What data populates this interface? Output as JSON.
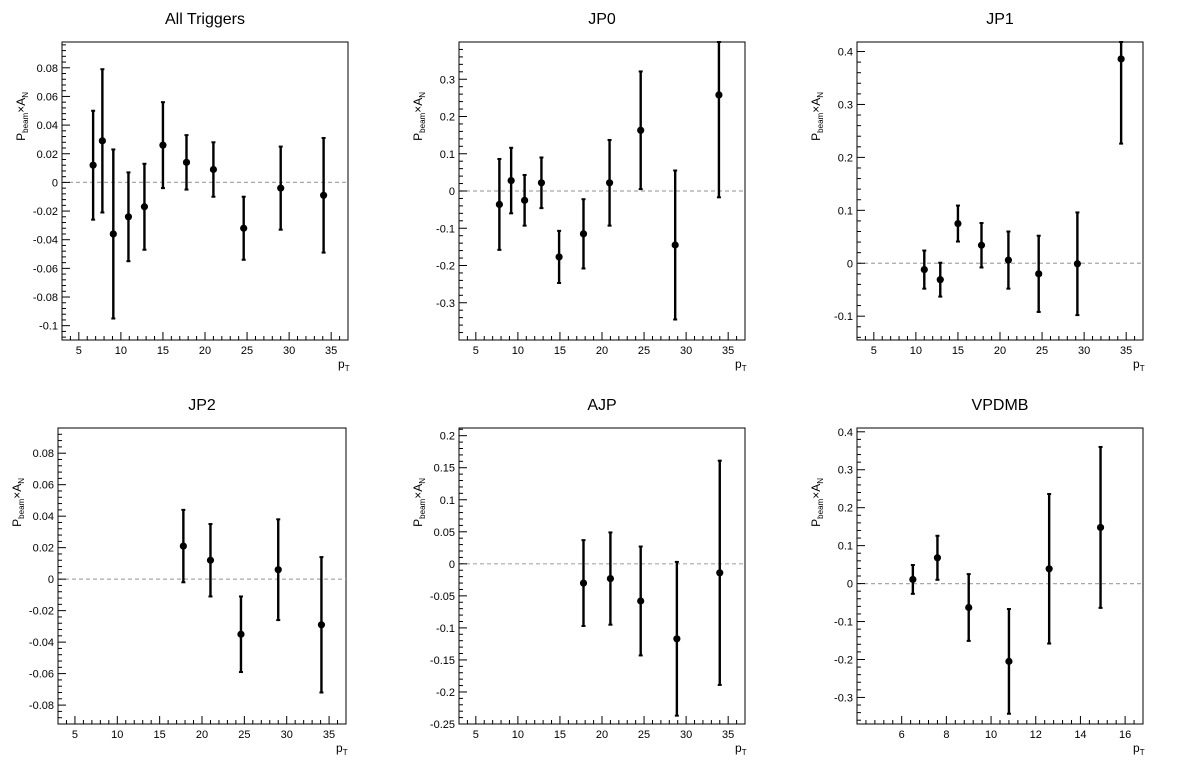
{
  "chart_data": [
    {
      "type": "scatter",
      "title": "All Triggers",
      "xlabel": "p",
      "xlabel_sub": "T",
      "ylabel_a": "P",
      "ylabel_sub": "beam",
      "ylabel_b": "×A",
      "ylabel_sub2": "N",
      "xlim": [
        3,
        37
      ],
      "ylim": [
        -0.11,
        0.098
      ],
      "xticks": [
        5,
        10,
        15,
        20,
        25,
        30,
        35
      ],
      "xtick_labels": [
        "5",
        "10",
        "15",
        "20",
        "25",
        "30",
        "35"
      ],
      "yticks": [
        -0.1,
        -0.08,
        -0.06,
        -0.04,
        -0.02,
        0,
        0.02,
        0.04,
        0.06,
        0.08
      ],
      "ytick_labels": [
        "-0.1",
        "-0.08",
        "-0.06",
        "-0.04",
        "-0.02",
        "0",
        "0.02",
        "0.04",
        "0.06",
        "0.08"
      ],
      "points": [
        {
          "x": 6.7,
          "y": 0.012,
          "err": 0.038
        },
        {
          "x": 7.8,
          "y": 0.029,
          "err": 0.05
        },
        {
          "x": 9.1,
          "y": -0.036,
          "err": 0.059
        },
        {
          "x": 10.9,
          "y": -0.024,
          "err": 0.031
        },
        {
          "x": 12.8,
          "y": -0.017,
          "err": 0.03
        },
        {
          "x": 15.0,
          "y": 0.026,
          "err": 0.03
        },
        {
          "x": 17.8,
          "y": 0.014,
          "err": 0.019
        },
        {
          "x": 21.0,
          "y": 0.009,
          "err": 0.019
        },
        {
          "x": 24.6,
          "y": -0.032,
          "err": 0.022
        },
        {
          "x": 29.0,
          "y": -0.004,
          "err": 0.029
        },
        {
          "x": 34.1,
          "y": -0.009,
          "err": 0.04
        }
      ],
      "reference_line": 0,
      "grid": false
    },
    {
      "type": "scatter",
      "title": "JP0",
      "xlabel": "p",
      "xlabel_sub": "T",
      "ylabel_a": "P",
      "ylabel_sub": "beam",
      "ylabel_b": "×A",
      "ylabel_sub2": "N",
      "xlim": [
        3,
        37
      ],
      "ylim": [
        -0.4,
        0.4
      ],
      "xticks": [
        5,
        10,
        15,
        20,
        25,
        30,
        35
      ],
      "xtick_labels": [
        "5",
        "10",
        "15",
        "20",
        "25",
        "30",
        "35"
      ],
      "yticks": [
        -0.3,
        -0.2,
        -0.1,
        0,
        0.1,
        0.2,
        0.3
      ],
      "ytick_labels": [
        "-0.3",
        "-0.2",
        "-0.1",
        "0",
        "0.1",
        "0.2",
        "0.3"
      ],
      "points": [
        {
          "x": 7.8,
          "y": -0.036,
          "err": 0.122
        },
        {
          "x": 9.2,
          "y": 0.028,
          "err": 0.088
        },
        {
          "x": 10.8,
          "y": -0.025,
          "err": 0.068
        },
        {
          "x": 12.8,
          "y": 0.022,
          "err": 0.068
        },
        {
          "x": 14.9,
          "y": -0.177,
          "err": 0.07
        },
        {
          "x": 17.8,
          "y": -0.115,
          "err": 0.093
        },
        {
          "x": 20.9,
          "y": 0.022,
          "err": 0.115
        },
        {
          "x": 24.6,
          "y": 0.163,
          "err": 0.158
        },
        {
          "x": 28.7,
          "y": -0.145,
          "err": 0.2
        },
        {
          "x": 33.9,
          "y": 0.258,
          "err": 0.275
        }
      ],
      "reference_line": 0,
      "grid": false
    },
    {
      "type": "scatter",
      "title": "JP1",
      "xlabel": "p",
      "xlabel_sub": "T",
      "ylabel_a": "P",
      "ylabel_sub": "beam",
      "ylabel_b": "×A",
      "ylabel_sub2": "N",
      "xlim": [
        3,
        37
      ],
      "ylim": [
        -0.145,
        0.418
      ],
      "xticks": [
        5,
        10,
        15,
        20,
        25,
        30,
        35
      ],
      "xtick_labels": [
        "5",
        "10",
        "15",
        "20",
        "25",
        "30",
        "35"
      ],
      "yticks": [
        -0.1,
        0,
        0.1,
        0.2,
        0.3,
        0.4
      ],
      "ytick_labels": [
        "-0.1",
        "0",
        "0.1",
        "0.2",
        "0.3",
        "0.4"
      ],
      "points": [
        {
          "x": 11.0,
          "y": -0.012,
          "err": 0.036
        },
        {
          "x": 12.9,
          "y": -0.031,
          "err": 0.032
        },
        {
          "x": 15.0,
          "y": 0.075,
          "err": 0.034
        },
        {
          "x": 17.8,
          "y": 0.034,
          "err": 0.042
        },
        {
          "x": 21.0,
          "y": 0.006,
          "err": 0.054
        },
        {
          "x": 24.6,
          "y": -0.02,
          "err": 0.072
        },
        {
          "x": 29.2,
          "y": -0.001,
          "err": 0.097
        },
        {
          "x": 34.4,
          "y": 0.386,
          "err": 0.16
        }
      ],
      "reference_line": 0,
      "grid": false
    },
    {
      "type": "scatter",
      "title": "JP2",
      "xlabel": "p",
      "xlabel_sub": "T",
      "ylabel_a": "P",
      "ylabel_sub": "beam",
      "ylabel_b": "×A",
      "ylabel_sub2": "N",
      "xlim": [
        3,
        37
      ],
      "ylim": [
        -0.092,
        0.096
      ],
      "xticks": [
        5,
        10,
        15,
        20,
        25,
        30,
        35
      ],
      "xtick_labels": [
        "5",
        "10",
        "15",
        "20",
        "25",
        "30",
        "35"
      ],
      "yticks": [
        -0.08,
        -0.06,
        -0.04,
        -0.02,
        0,
        0.02,
        0.04,
        0.06,
        0.08
      ],
      "ytick_labels": [
        "-0.08",
        "-0.06",
        "-0.04",
        "-0.02",
        "0",
        "0.02",
        "0.04",
        "0.06",
        "0.08"
      ],
      "points": [
        {
          "x": 17.8,
          "y": 0.021,
          "err": 0.023
        },
        {
          "x": 21.0,
          "y": 0.012,
          "err": 0.023
        },
        {
          "x": 24.6,
          "y": -0.035,
          "err": 0.024
        },
        {
          "x": 29.0,
          "y": 0.006,
          "err": 0.032
        },
        {
          "x": 34.1,
          "y": -0.029,
          "err": 0.043
        }
      ],
      "reference_line": 0,
      "grid": false
    },
    {
      "type": "scatter",
      "title": "AJP",
      "xlabel": "p",
      "xlabel_sub": "T",
      "ylabel_a": "P",
      "ylabel_sub": "beam",
      "ylabel_b": "×A",
      "ylabel_sub2": "N",
      "xlim": [
        3,
        37
      ],
      "ylim": [
        -0.25,
        0.212
      ],
      "xticks": [
        5,
        10,
        15,
        20,
        25,
        30,
        35
      ],
      "xtick_labels": [
        "5",
        "10",
        "15",
        "20",
        "25",
        "30",
        "35"
      ],
      "yticks": [
        -0.25,
        -0.2,
        -0.15,
        -0.1,
        -0.05,
        0,
        0.05,
        0.1,
        0.15,
        0.2
      ],
      "ytick_labels": [
        "-0.25",
        "-0.2",
        "-0.15",
        "-0.1",
        "-0.05",
        "0",
        "0.05",
        "0.1",
        "0.15",
        "0.2"
      ],
      "points": [
        {
          "x": 17.8,
          "y": -0.03,
          "err": 0.067
        },
        {
          "x": 21.0,
          "y": -0.023,
          "err": 0.072
        },
        {
          "x": 24.6,
          "y": -0.058,
          "err": 0.085
        },
        {
          "x": 28.9,
          "y": -0.117,
          "err": 0.12
        },
        {
          "x": 34.0,
          "y": -0.014,
          "err": 0.175
        }
      ],
      "reference_line": 0,
      "grid": false
    },
    {
      "type": "scatter",
      "title": "VPDMB",
      "xlabel": "p",
      "xlabel_sub": "T",
      "ylabel_a": "P",
      "ylabel_sub": "beam",
      "ylabel_b": "×A",
      "ylabel_sub2": "N",
      "xlim": [
        4,
        16.8
      ],
      "ylim": [
        -0.37,
        0.41
      ],
      "xticks": [
        6,
        8,
        10,
        12,
        14,
        16
      ],
      "xtick_labels": [
        "6",
        "8",
        "10",
        "12",
        "14",
        "16"
      ],
      "yticks": [
        -0.3,
        -0.2,
        -0.1,
        0,
        0.1,
        0.2,
        0.3,
        0.4
      ],
      "ytick_labels": [
        "-0.3",
        "-0.2",
        "-0.1",
        "0",
        "0.1",
        "0.2",
        "0.3",
        "0.4"
      ],
      "points": [
        {
          "x": 6.5,
          "y": 0.011,
          "err": 0.038
        },
        {
          "x": 7.6,
          "y": 0.068,
          "err": 0.058
        },
        {
          "x": 9.0,
          "y": -0.063,
          "err": 0.088
        },
        {
          "x": 10.8,
          "y": -0.205,
          "err": 0.138
        },
        {
          "x": 12.6,
          "y": 0.039,
          "err": 0.197
        },
        {
          "x": 14.9,
          "y": 0.148,
          "err": 0.212
        }
      ],
      "reference_line": 0,
      "grid": false
    }
  ]
}
